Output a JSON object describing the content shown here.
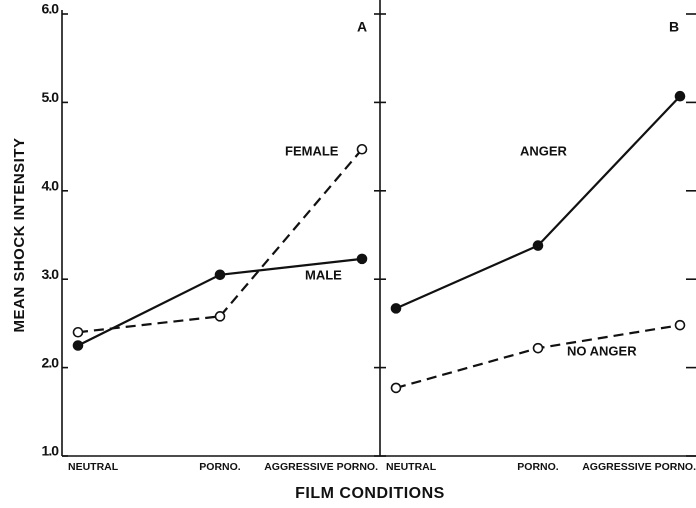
{
  "chart_data": [
    {
      "type": "line",
      "panel_label": "A",
      "y_label": "MEAN SHOCK INTENSITY",
      "x_label": "FILM CONDITIONS",
      "categories": [
        "NEUTRAL",
        "PORNO.",
        "AGGRESSIVE PORNO."
      ],
      "series": [
        {
          "name": "MALE",
          "color": "#111111",
          "dash": false,
          "marker": "filled",
          "values": [
            2.25,
            3.05,
            3.23
          ]
        },
        {
          "name": "FEMALE",
          "color": "#111111",
          "dash": true,
          "marker": "open",
          "values": [
            2.4,
            2.58,
            4.47
          ]
        }
      ],
      "ylim": [
        1,
        6
      ],
      "yticks": [
        {
          "value": 1,
          "label": "1.0"
        },
        {
          "value": 2,
          "label": "2.0"
        },
        {
          "value": 3,
          "label": "3.0"
        },
        {
          "value": 4,
          "label": "4.0"
        },
        {
          "value": 5,
          "label": "5.0"
        },
        {
          "value": 6,
          "label": "6.0"
        }
      ]
    },
    {
      "type": "line",
      "panel_label": "B",
      "categories": [
        "NEUTRAL",
        "PORNO.",
        "AGGRESSIVE PORNO."
      ],
      "series": [
        {
          "name": "ANGER",
          "color": "#111111",
          "dash": false,
          "marker": "filled",
          "values": [
            2.67,
            3.38,
            5.07
          ]
        },
        {
          "name": "NO ANGER",
          "color": "#111111",
          "dash": true,
          "marker": "open",
          "values": [
            1.77,
            2.22,
            2.48
          ]
        }
      ],
      "ylim": [
        1,
        6
      ],
      "yticks": [
        1,
        2,
        3,
        4,
        5,
        6
      ]
    }
  ]
}
